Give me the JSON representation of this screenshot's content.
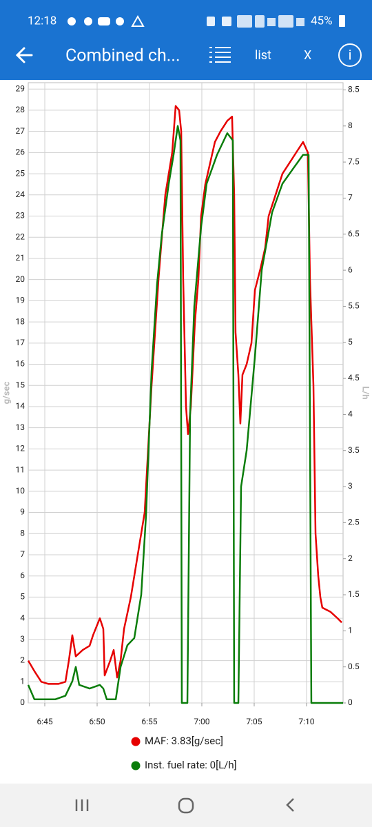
{
  "status_bar": {
    "time": "12:18",
    "battery": "45%"
  },
  "app_bar": {
    "title": "Combined ch...",
    "list": "list",
    "close": "X",
    "info": "i"
  },
  "chart_data": {
    "type": "line",
    "y_label": "g/sec",
    "y2_label": "L/h",
    "xlim": [
      403.42,
      433.49
    ],
    "xticks": [
      {
        "value": 405,
        "label": "6:45"
      },
      {
        "value": 410,
        "label": "6:50"
      },
      {
        "value": 415,
        "label": "6:55"
      },
      {
        "value": 420,
        "label": "7:00"
      },
      {
        "value": 425,
        "label": "7:05"
      },
      {
        "value": 430,
        "label": "7:10"
      }
    ],
    "ylim": [
      0,
      29.3
    ],
    "yticks": [
      0,
      1,
      2,
      3,
      4,
      5,
      6,
      7,
      8,
      9,
      10,
      11,
      12,
      13,
      14,
      15,
      16,
      17,
      18,
      19,
      20,
      21,
      22,
      23,
      24,
      25,
      26,
      27,
      28,
      29
    ],
    "y2lim": [
      0,
      8.6
    ],
    "y2ticks": [
      0,
      0.5,
      1,
      1.5,
      2,
      2.5,
      3,
      3.5,
      4,
      4.5,
      5,
      5.5,
      6,
      6.5,
      7,
      7.5,
      8,
      8.5
    ],
    "grid": true,
    "legend": "bottom",
    "series": [
      {
        "name": "MAF: 3.83[g/sec]",
        "color": "#e60000",
        "x": [
          403.42,
          404.01,
          404.67,
          405.33,
          406.32,
          406.97,
          407.3,
          407.63,
          407.96,
          408.62,
          409.28,
          409.61,
          410.26,
          410.59,
          410.72,
          411.25,
          411.58,
          411.91,
          412.24,
          412.57,
          413.22,
          413.88,
          414.54,
          414.87,
          415.2,
          415.53,
          415.86,
          416.18,
          416.51,
          416.84,
          417.17,
          417.5,
          417.83,
          418.03,
          418.22,
          418.49,
          418.68,
          418.95,
          419.34,
          419.67,
          419.93,
          420.33,
          420.79,
          421.25,
          421.78,
          422.43,
          422.89,
          423.09,
          423.22,
          423.49,
          423.68,
          423.88,
          424.28,
          424.74,
          425.07,
          425.59,
          426.05,
          426.38,
          427.04,
          427.7,
          428.36,
          429.01,
          429.67,
          430.13,
          430.33,
          430.66,
          430.86,
          431.12,
          431.32,
          431.51,
          432.3,
          432.96,
          433.36
        ],
        "values": [
          2.0,
          1.5,
          1.0,
          0.9,
          0.9,
          1.0,
          2.0,
          3.2,
          2.2,
          2.5,
          2.7,
          3.2,
          4.0,
          3.5,
          1.3,
          2.0,
          2.5,
          1.2,
          2.0,
          3.5,
          5.0,
          7.0,
          9.0,
          12.0,
          15.0,
          17.5,
          20.0,
          22.0,
          24.0,
          25.0,
          26.0,
          28.2,
          28.0,
          27.0,
          20.0,
          14.0,
          12.7,
          14.0,
          18.0,
          20.0,
          23.0,
          24.5,
          25.5,
          26.5,
          27.0,
          27.5,
          27.7,
          24.0,
          17.5,
          15.5,
          13.2,
          15.5,
          16.0,
          17.0,
          19.5,
          20.5,
          21.5,
          23.0,
          24.0,
          25.0,
          25.5,
          26.0,
          26.5,
          26.0,
          20.0,
          15.0,
          8.0,
          6.0,
          5.0,
          4.5,
          4.3,
          4.0,
          3.8
        ]
      },
      {
        "name": "Inst. fuel rate: 0[L/h]",
        "color": "#0a7d0a",
        "axis": "y2",
        "x": [
          403.42,
          404.01,
          405.99,
          406.97,
          407.63,
          407.96,
          408.29,
          409.28,
          410.26,
          410.59,
          410.92,
          411.78,
          412.24,
          412.89,
          413.55,
          414.21,
          414.67,
          415.2,
          415.72,
          416.18,
          416.84,
          417.3,
          417.7,
          417.96,
          418.09,
          418.62,
          418.88,
          419.28,
          419.93,
          420.46,
          421.45,
          422.43,
          422.96,
          423.09,
          423.49,
          423.75,
          424.28,
          425.07,
          425.72,
          426.71,
          427.7,
          428.68,
          429.67,
          430.2,
          430.46,
          433.49
        ],
        "values": [
          0.25,
          0.05,
          0.05,
          0.1,
          0.3,
          0.5,
          0.25,
          0.2,
          0.25,
          0.2,
          0.05,
          0.05,
          0.5,
          0.8,
          0.9,
          1.5,
          2.6,
          4.6,
          5.8,
          6.5,
          7.2,
          7.6,
          8.0,
          7.8,
          0,
          0,
          4.0,
          5.5,
          6.6,
          7.2,
          7.6,
          7.9,
          7.8,
          0,
          0,
          3.0,
          3.5,
          4.8,
          6.0,
          6.8,
          7.2,
          7.4,
          7.6,
          7.6,
          0,
          0
        ]
      }
    ]
  }
}
